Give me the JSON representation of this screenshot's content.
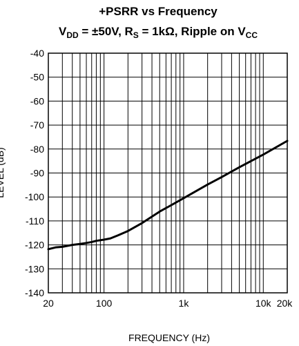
{
  "chart_data": {
    "type": "line",
    "title_line1": "+PSRR vs Frequency",
    "title_line2": {
      "vdd_main": "V",
      "vdd_sub": "DD",
      "vdd_value": " = ±50V, R",
      "rs_sub": "S",
      "rs_value": " = 1kΩ, Ripple on V",
      "vcc_sub": "CC"
    },
    "xlabel": "FREQUENCY (Hz)",
    "ylabel": "LEVEL (dB)",
    "x_scale": "log",
    "xlim": [
      20,
      20000
    ],
    "ylim": [
      -140,
      -40
    ],
    "grid": true,
    "y_ticks": [
      "-40",
      "-50",
      "-60",
      "-70",
      "-80",
      "-90",
      "-100",
      "-110",
      "-120",
      "-130",
      "-140"
    ],
    "y_tick_values": [
      -40,
      -50,
      -60,
      -70,
      -80,
      -90,
      -100,
      -110,
      -120,
      -130,
      -140
    ],
    "x_ticks": [
      "20",
      "100",
      "1k",
      "10k",
      "20k"
    ],
    "x_tick_values": [
      20,
      100,
      1000,
      10000,
      20000
    ],
    "series": [
      {
        "color": "#000000",
        "x": [
          20,
          25,
          30,
          40,
          50,
          60,
          70,
          80,
          100,
          120,
          150,
          200,
          300,
          500,
          700,
          1000,
          2000,
          3000,
          5000,
          10000,
          20000
        ],
        "y": [
          -121.8,
          -121,
          -120.8,
          -120,
          -119.6,
          -119.2,
          -118.8,
          -118.3,
          -117.8,
          -117.3,
          -116,
          -114.2,
          -110.9,
          -106.1,
          -103.4,
          -100.5,
          -94.8,
          -91.7,
          -87.6,
          -82.3,
          -76.6
        ]
      }
    ]
  }
}
